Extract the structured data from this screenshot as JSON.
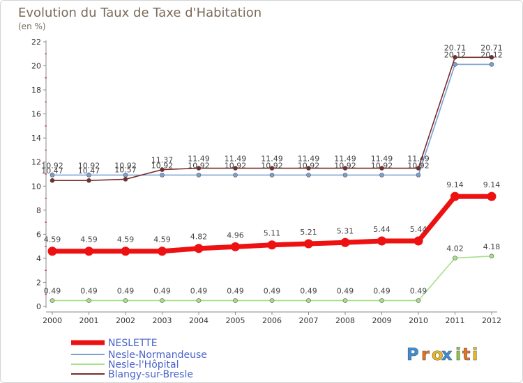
{
  "chart_data": {
    "type": "line",
    "title": "Evolution du Taux de Taxe d'Habitation",
    "subtitle": "(en %)",
    "xlabel": "",
    "ylabel": "",
    "x": [
      "2000",
      "2001",
      "2002",
      "2003",
      "2004",
      "2005",
      "2006",
      "2007",
      "2008",
      "2009",
      "2010",
      "2011",
      "2012"
    ],
    "ylim": [
      0,
      22
    ],
    "yticks": [
      0,
      2,
      4,
      6,
      8,
      10,
      12,
      14,
      16,
      18,
      20,
      22
    ],
    "grid": false,
    "legend_position": "bottom-left",
    "series": [
      {
        "name": "NESLETTE",
        "color": "#ee1111",
        "values": [
          4.59,
          4.59,
          4.59,
          4.59,
          4.82,
          4.96,
          5.11,
          5.21,
          5.31,
          5.44,
          5.44,
          9.14,
          9.14
        ],
        "labels": [
          "4.59",
          "4.59",
          "4.59",
          "4.59",
          "4.82",
          "4.96",
          "5.11",
          "5.21",
          "5.31",
          "5.44",
          "5.44",
          "9.14",
          "9.14"
        ]
      },
      {
        "name": "Nesle-Normandeuse",
        "color": "#7aa0d2",
        "values": [
          10.92,
          10.92,
          10.92,
          10.92,
          10.92,
          10.92,
          10.92,
          10.92,
          10.92,
          10.92,
          10.92,
          20.12,
          20.12
        ],
        "labels": [
          "10.92",
          "10.92",
          "10.92",
          "10.92",
          "10.92",
          "10.92",
          "10.92",
          "10.92",
          "10.92",
          "10.92",
          "10.92",
          "20.12",
          "20.12"
        ]
      },
      {
        "name": "Nesle-l'Hôpital",
        "color": "#a8e08a",
        "values": [
          0.49,
          0.49,
          0.49,
          0.49,
          0.49,
          0.49,
          0.49,
          0.49,
          0.49,
          0.49,
          0.49,
          4.02,
          4.18
        ],
        "labels": [
          "0.49",
          "0.49",
          "0.49",
          "0.49",
          "0.49",
          "0.49",
          "0.49",
          "0.49",
          "0.49",
          "0.49",
          "0.49",
          "4.02",
          "4.18"
        ]
      },
      {
        "name": "Blangy-sur-Bresle",
        "color": "#7a2a2a",
        "values": [
          10.47,
          10.47,
          10.57,
          11.37,
          11.49,
          11.49,
          11.49,
          11.49,
          11.49,
          11.49,
          11.49,
          20.71,
          20.71
        ],
        "labels": [
          "10.47",
          "10.47",
          "10.57",
          "11.37",
          "11.49",
          "11.49",
          "11.49",
          "11.49",
          "11.49",
          "11.49",
          "11.49",
          "20.71",
          "20.71"
        ]
      }
    ]
  },
  "brand": {
    "letters": [
      "P",
      "r",
      "o",
      "x",
      "i",
      "t",
      "i"
    ],
    "colors": [
      "#3a8fd8",
      "#e8721e",
      "#f0b81c",
      "#3a8fd8",
      "#8cc63e",
      "#e8721e",
      "#f0b81c"
    ]
  }
}
